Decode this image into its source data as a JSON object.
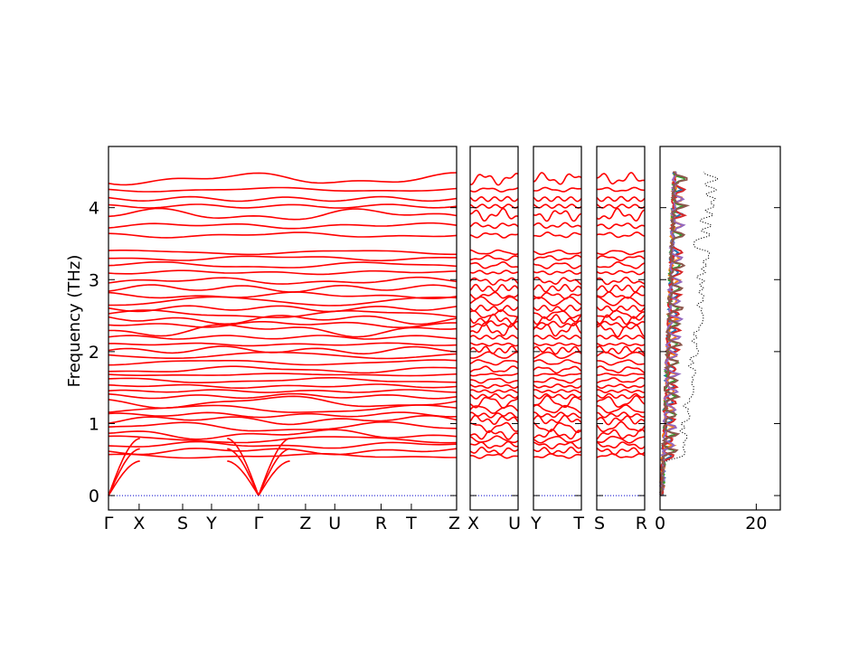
{
  "chart_data": {
    "type": "line",
    "ylabel": "Frequency (THz)",
    "ylim": [
      -0.2,
      4.85
    ],
    "yticks": [
      "0",
      "1",
      "2",
      "3",
      "4"
    ],
    "segments": [
      {
        "ticks": [
          "Γ",
          "X",
          "S",
          "Y",
          "Γ",
          "Z",
          "U",
          "R",
          "T",
          "Z"
        ],
        "tick_pos": [
          0,
          0.088,
          0.213,
          0.296,
          0.431,
          0.566,
          0.65,
          0.783,
          0.87,
          1.0
        ]
      },
      {
        "ticks": [
          "X",
          "U"
        ],
        "tick_pos": [
          0,
          1
        ]
      },
      {
        "ticks": [
          "Y",
          "T"
        ],
        "tick_pos": [
          0,
          1
        ]
      },
      {
        "ticks": [
          "S",
          "R"
        ],
        "tick_pos": [
          0,
          1
        ]
      }
    ],
    "dos_panel": {
      "xlim": [
        0,
        25
      ],
      "xticks": [
        "0",
        "20"
      ],
      "series_colors": [
        "#1f77b4",
        "#ff7f0e",
        "#2ca02c",
        "#d62728",
        "#9467bd",
        "#8c564b"
      ],
      "total_style": "dotted black"
    }
  }
}
